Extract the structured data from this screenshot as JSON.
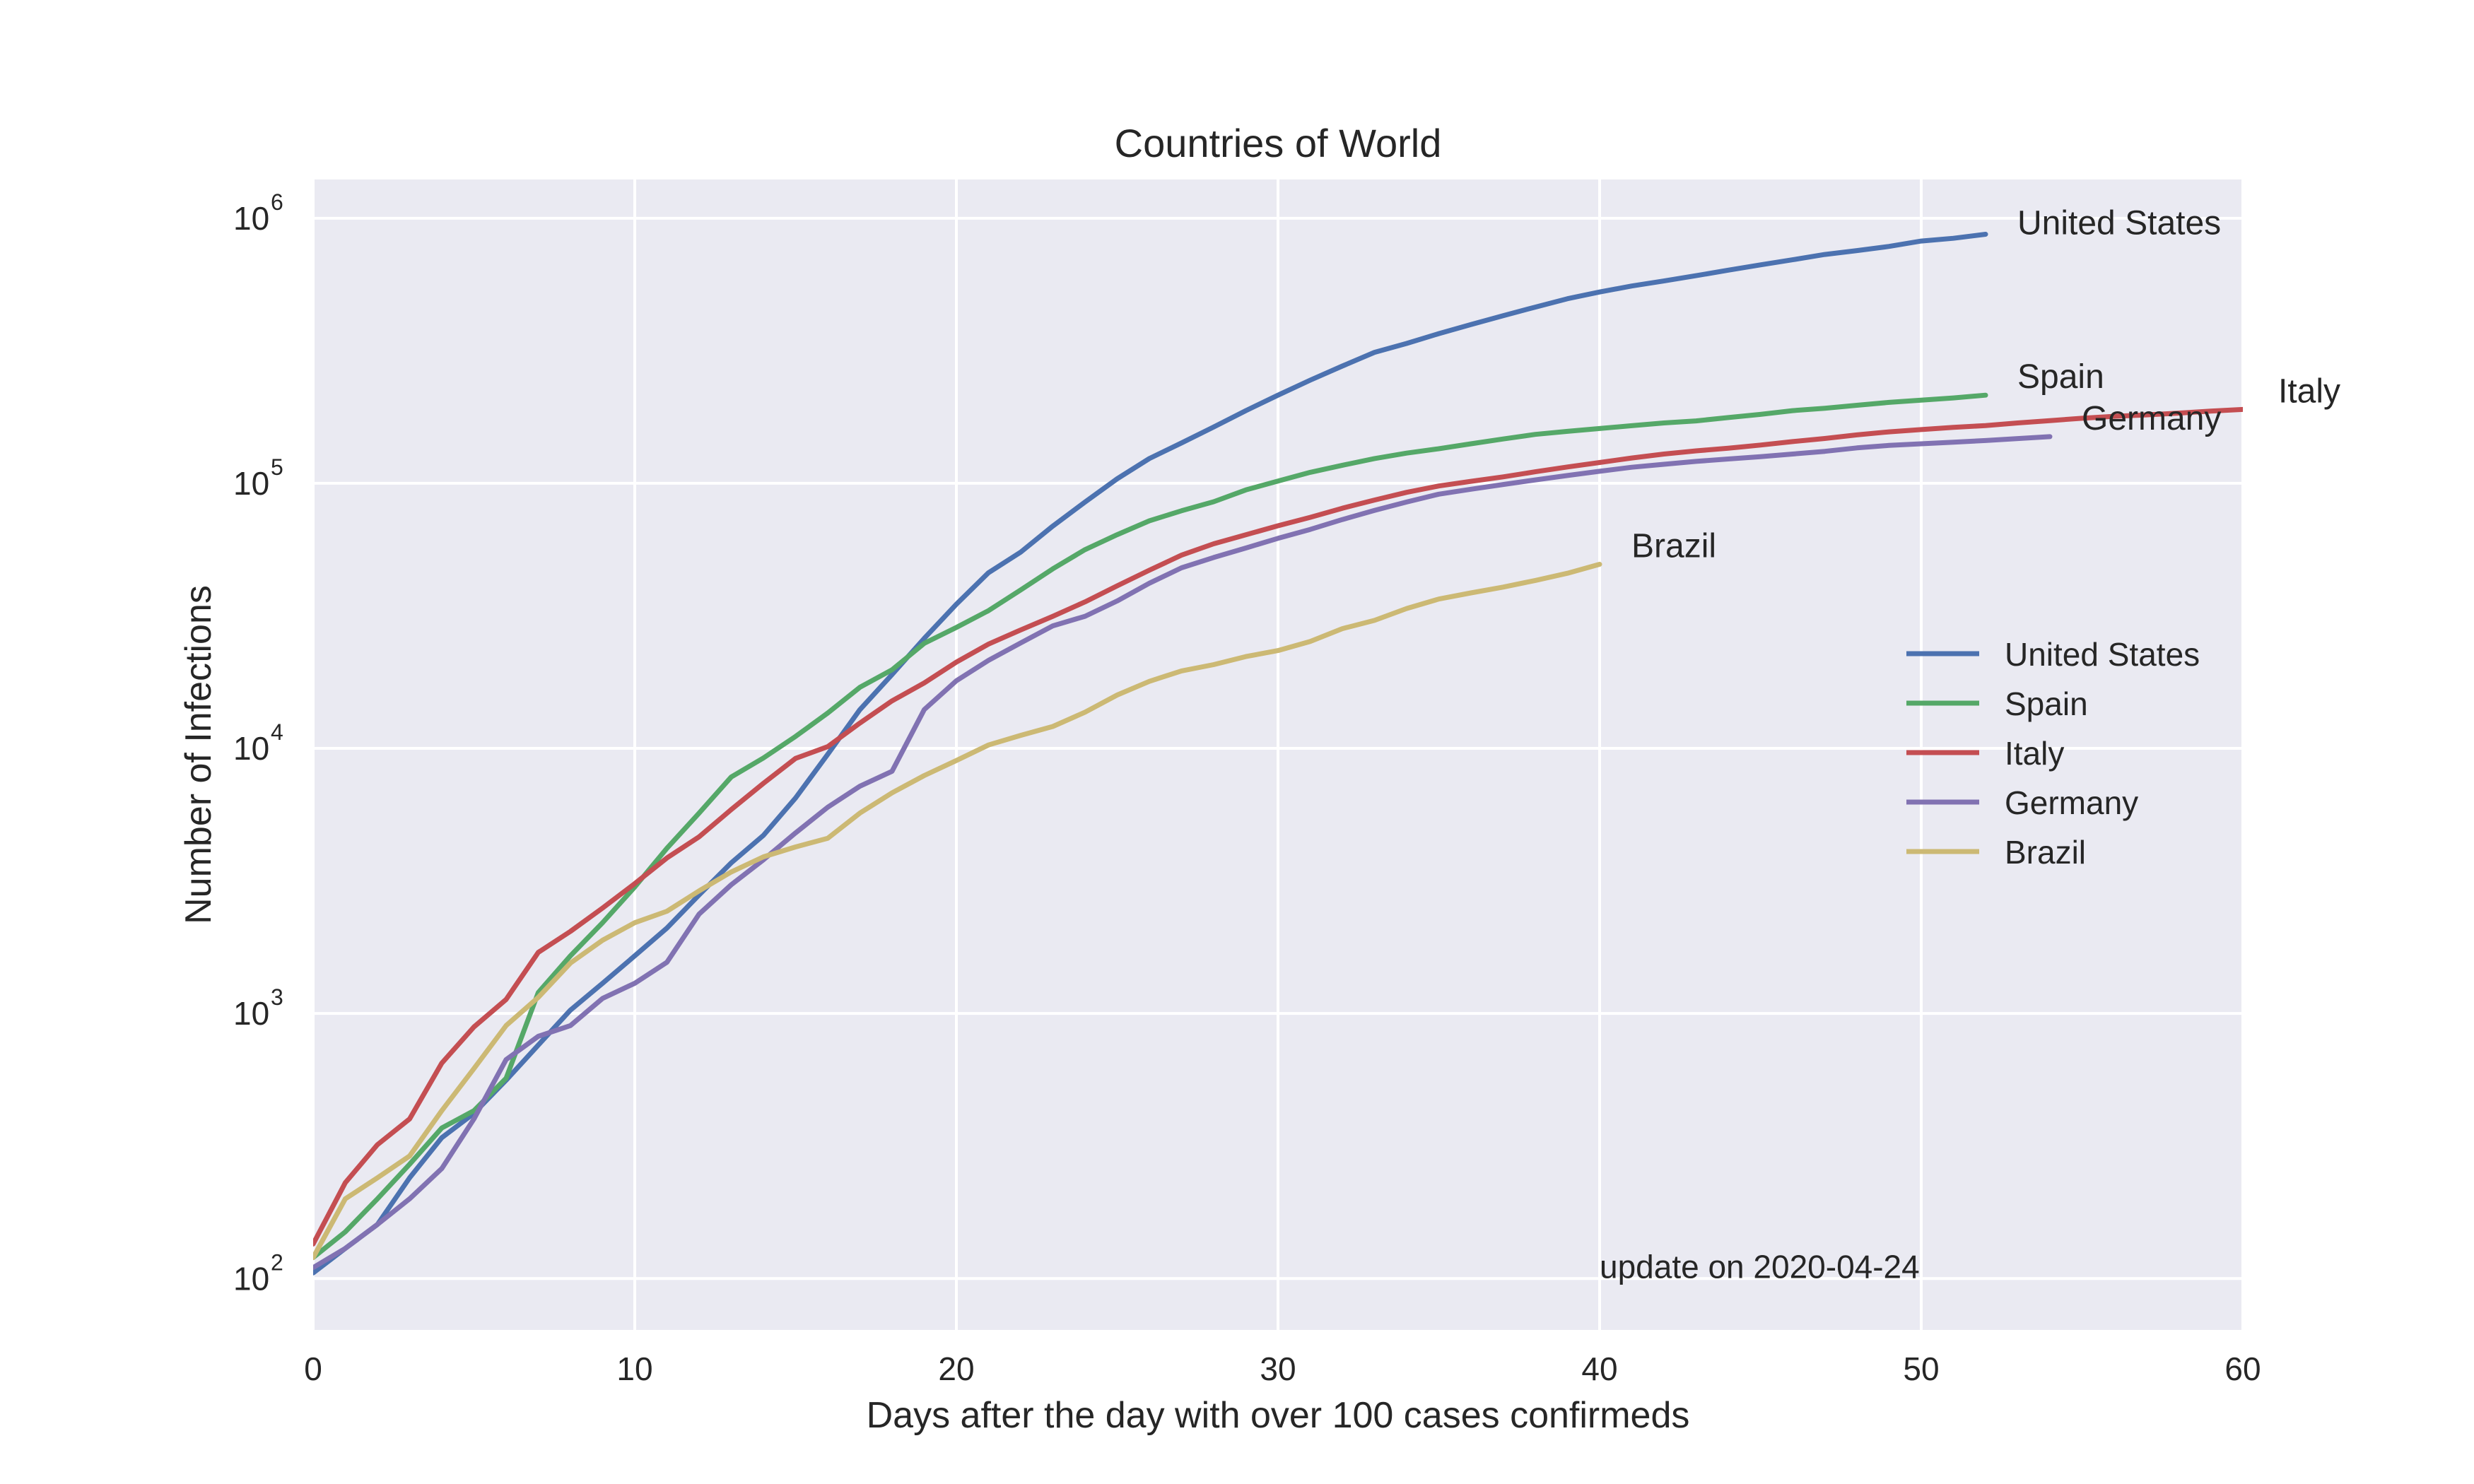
{
  "chart_data": {
    "type": "line",
    "title": "Countries of World",
    "xlabel": "Days after the day with over 100 cases confirmeds",
    "ylabel": "Number of Infections",
    "xlim": [
      0,
      60
    ],
    "ylim": [
      64,
      1400000
    ],
    "yscale": "log",
    "grid": true,
    "legend_position": "center-right",
    "x_ticks": [
      {
        "value": 0,
        "label": "0"
      },
      {
        "value": 10,
        "label": "10"
      },
      {
        "value": 20,
        "label": "20"
      },
      {
        "value": 30,
        "label": "30"
      },
      {
        "value": 40,
        "label": "40"
      },
      {
        "value": 50,
        "label": "50"
      },
      {
        "value": 60,
        "label": "60"
      }
    ],
    "y_ticks": [
      {
        "value": 100,
        "base": "10",
        "exp": "2"
      },
      {
        "value": 1000,
        "base": "10",
        "exp": "3"
      },
      {
        "value": 10000,
        "base": "10",
        "exp": "4"
      },
      {
        "value": 100000,
        "base": "10",
        "exp": "5"
      },
      {
        "value": 1000000,
        "base": "10",
        "exp": "6"
      }
    ],
    "annotation": {
      "text": "update on 2020-04-24",
      "x": 40,
      "y": 100
    },
    "series": [
      {
        "name": "United States",
        "color": "#4c72b0",
        "points": [
          [
            0,
            105
          ],
          [
            1,
            130
          ],
          [
            2,
            160
          ],
          [
            3,
            240
          ],
          [
            4,
            340
          ],
          [
            5,
            420
          ],
          [
            6,
            560
          ],
          [
            7,
            760
          ],
          [
            8,
            1030
          ],
          [
            9,
            1300
          ],
          [
            10,
            1650
          ],
          [
            11,
            2100
          ],
          [
            12,
            2800
          ],
          [
            13,
            3700
          ],
          [
            14,
            4700
          ],
          [
            15,
            6500
          ],
          [
            16,
            9500
          ],
          [
            17,
            14000
          ],
          [
            18,
            19000
          ],
          [
            19,
            26000
          ],
          [
            20,
            35000
          ],
          [
            21,
            46000
          ],
          [
            22,
            55000
          ],
          [
            23,
            69000
          ],
          [
            24,
            85000
          ],
          [
            25,
            104000
          ],
          [
            26,
            124000
          ],
          [
            27,
            142000
          ],
          [
            28,
            163000
          ],
          [
            29,
            188000
          ],
          [
            30,
            215000
          ],
          [
            31,
            245000
          ],
          [
            32,
            277000
          ],
          [
            33,
            312000
          ],
          [
            34,
            337000
          ],
          [
            35,
            367000
          ],
          [
            36,
            397000
          ],
          [
            37,
            429000
          ],
          [
            38,
            462000
          ],
          [
            39,
            497000
          ],
          [
            40,
            527000
          ],
          [
            41,
            555000
          ],
          [
            42,
            580000
          ],
          [
            43,
            607000
          ],
          [
            44,
            637000
          ],
          [
            45,
            667000
          ],
          [
            46,
            697000
          ],
          [
            47,
            730000
          ],
          [
            48,
            755000
          ],
          [
            49,
            783000
          ],
          [
            50,
            820000
          ],
          [
            51,
            840000
          ],
          [
            52,
            870000
          ]
        ]
      },
      {
        "name": "Spain",
        "color": "#55a868",
        "points": [
          [
            0,
            120
          ],
          [
            1,
            150
          ],
          [
            2,
            200
          ],
          [
            3,
            270
          ],
          [
            4,
            370
          ],
          [
            5,
            430
          ],
          [
            6,
            570
          ],
          [
            7,
            1200
          ],
          [
            8,
            1650
          ],
          [
            9,
            2200
          ],
          [
            10,
            3000
          ],
          [
            11,
            4200
          ],
          [
            12,
            5700
          ],
          [
            13,
            7800
          ],
          [
            14,
            9200
          ],
          [
            15,
            11100
          ],
          [
            16,
            13600
          ],
          [
            17,
            17000
          ],
          [
            18,
            19800
          ],
          [
            19,
            24900
          ],
          [
            20,
            28600
          ],
          [
            21,
            33100
          ],
          [
            22,
            39600
          ],
          [
            23,
            47600
          ],
          [
            24,
            56200
          ],
          [
            25,
            64000
          ],
          [
            26,
            72200
          ],
          [
            27,
            78800
          ],
          [
            28,
            85200
          ],
          [
            29,
            94400
          ],
          [
            30,
            102000
          ],
          [
            31,
            110000
          ],
          [
            32,
            117000
          ],
          [
            33,
            124000
          ],
          [
            34,
            130000
          ],
          [
            35,
            135000
          ],
          [
            36,
            141000
          ],
          [
            37,
            147000
          ],
          [
            38,
            153000
          ],
          [
            39,
            157000
          ],
          [
            40,
            161000
          ],
          [
            41,
            165000
          ],
          [
            42,
            169000
          ],
          [
            43,
            172000
          ],
          [
            44,
            177000
          ],
          [
            45,
            182000
          ],
          [
            46,
            188000
          ],
          [
            47,
            192000
          ],
          [
            48,
            197000
          ],
          [
            49,
            202000
          ],
          [
            50,
            206000
          ],
          [
            51,
            210000
          ],
          [
            52,
            215000
          ]
        ]
      },
      {
        "name": "Italy",
        "color": "#c44e52",
        "points": [
          [
            0,
            135
          ],
          [
            1,
            230
          ],
          [
            2,
            320
          ],
          [
            3,
            400
          ],
          [
            4,
            650
          ],
          [
            5,
            890
          ],
          [
            6,
            1130
          ],
          [
            7,
            1700
          ],
          [
            8,
            2040
          ],
          [
            9,
            2500
          ],
          [
            10,
            3090
          ],
          [
            11,
            3860
          ],
          [
            12,
            4640
          ],
          [
            13,
            5880
          ],
          [
            14,
            7380
          ],
          [
            15,
            9170
          ],
          [
            16,
            10150
          ],
          [
            17,
            12460
          ],
          [
            18,
            15110
          ],
          [
            19,
            17660
          ],
          [
            20,
            21160
          ],
          [
            21,
            24750
          ],
          [
            22,
            27980
          ],
          [
            23,
            31510
          ],
          [
            24,
            35710
          ],
          [
            25,
            41040
          ],
          [
            26,
            47020
          ],
          [
            27,
            53580
          ],
          [
            28,
            59140
          ],
          [
            29,
            63930
          ],
          [
            30,
            69180
          ],
          [
            31,
            74390
          ],
          [
            32,
            80540
          ],
          [
            33,
            86500
          ],
          [
            34,
            92470
          ],
          [
            35,
            97690
          ],
          [
            36,
            101740
          ],
          [
            37,
            105790
          ],
          [
            38,
            110570
          ],
          [
            39,
            115240
          ],
          [
            40,
            119830
          ],
          [
            41,
            124630
          ],
          [
            42,
            128950
          ],
          [
            43,
            132550
          ],
          [
            44,
            135590
          ],
          [
            45,
            139420
          ],
          [
            46,
            143630
          ],
          [
            47,
            147580
          ],
          [
            48,
            152270
          ],
          [
            49,
            156360
          ],
          [
            50,
            159520
          ],
          [
            51,
            162490
          ],
          [
            52,
            165150
          ],
          [
            53,
            168940
          ],
          [
            54,
            172430
          ],
          [
            55,
            175920
          ],
          [
            56,
            178970
          ],
          [
            57,
            181230
          ],
          [
            58,
            183960
          ],
          [
            59,
            187330
          ],
          [
            60,
            189970
          ]
        ]
      },
      {
        "name": "Germany",
        "color": "#8172b2",
        "points": [
          [
            0,
            110
          ],
          [
            1,
            130
          ],
          [
            2,
            160
          ],
          [
            3,
            200
          ],
          [
            4,
            260
          ],
          [
            5,
            400
          ],
          [
            6,
            670
          ],
          [
            7,
            820
          ],
          [
            8,
            900
          ],
          [
            9,
            1140
          ],
          [
            10,
            1300
          ],
          [
            11,
            1560
          ],
          [
            12,
            2370
          ],
          [
            13,
            3060
          ],
          [
            14,
            3800
          ],
          [
            15,
            4800
          ],
          [
            16,
            6000
          ],
          [
            17,
            7200
          ],
          [
            18,
            8200
          ],
          [
            19,
            14000
          ],
          [
            20,
            18000
          ],
          [
            21,
            21500
          ],
          [
            22,
            25000
          ],
          [
            23,
            29000
          ],
          [
            24,
            31500
          ],
          [
            25,
            36000
          ],
          [
            26,
            42000
          ],
          [
            27,
            48000
          ],
          [
            28,
            52500
          ],
          [
            29,
            57000
          ],
          [
            30,
            62000
          ],
          [
            31,
            67000
          ],
          [
            32,
            73000
          ],
          [
            33,
            79000
          ],
          [
            34,
            85000
          ],
          [
            35,
            91000
          ],
          [
            36,
            95000
          ],
          [
            37,
            99000
          ],
          [
            38,
            103000
          ],
          [
            39,
            107000
          ],
          [
            40,
            111000
          ],
          [
            41,
            115000
          ],
          [
            42,
            118000
          ],
          [
            43,
            121000
          ],
          [
            44,
            123500
          ],
          [
            45,
            126000
          ],
          [
            46,
            129000
          ],
          [
            47,
            132000
          ],
          [
            48,
            136000
          ],
          [
            49,
            139000
          ],
          [
            50,
            141000
          ],
          [
            51,
            143000
          ],
          [
            52,
            145000
          ],
          [
            53,
            147500
          ],
          [
            54,
            150000
          ]
        ]
      },
      {
        "name": "Brazil",
        "color": "#ccb974",
        "points": [
          [
            0,
            120
          ],
          [
            1,
            200
          ],
          [
            2,
            240
          ],
          [
            3,
            290
          ],
          [
            4,
            430
          ],
          [
            5,
            620
          ],
          [
            6,
            900
          ],
          [
            7,
            1150
          ],
          [
            8,
            1550
          ],
          [
            9,
            1890
          ],
          [
            10,
            2200
          ],
          [
            11,
            2430
          ],
          [
            12,
            2900
          ],
          [
            13,
            3420
          ],
          [
            14,
            3900
          ],
          [
            15,
            4250
          ],
          [
            16,
            4580
          ],
          [
            17,
            5700
          ],
          [
            18,
            6800
          ],
          [
            19,
            7900
          ],
          [
            20,
            9000
          ],
          [
            21,
            10300
          ],
          [
            22,
            11200
          ],
          [
            23,
            12100
          ],
          [
            24,
            13700
          ],
          [
            25,
            15900
          ],
          [
            26,
            17900
          ],
          [
            27,
            19600
          ],
          [
            28,
            20700
          ],
          [
            29,
            22200
          ],
          [
            30,
            23400
          ],
          [
            31,
            25300
          ],
          [
            32,
            28300
          ],
          [
            33,
            30400
          ],
          [
            34,
            33700
          ],
          [
            35,
            36600
          ],
          [
            36,
            38600
          ],
          [
            37,
            40600
          ],
          [
            38,
            43000
          ],
          [
            39,
            45800
          ],
          [
            40,
            49500
          ]
        ]
      }
    ]
  }
}
